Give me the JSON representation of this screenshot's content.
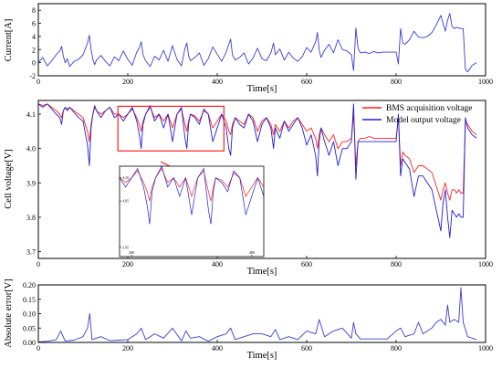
{
  "chart_data": [
    {
      "type": "line",
      "title": "",
      "xlabel": "Time[s]",
      "ylabel": "Current[A]",
      "xlim": [
        0,
        1000
      ],
      "ylim": [
        -2,
        9
      ],
      "xticks": [
        0,
        200,
        400,
        600,
        800,
        1000
      ],
      "yticks": [
        -2,
        0,
        2,
        4,
        6,
        8
      ],
      "grid": false,
      "series": [
        {
          "color": "#3b3bd6",
          "x": [
            0,
            10,
            20,
            30,
            40,
            48,
            52,
            56,
            60,
            65,
            70,
            80,
            90,
            100,
            110,
            114,
            118,
            122,
            126,
            130,
            140,
            150,
            160,
            170,
            180,
            190,
            200,
            210,
            220,
            226,
            230,
            234,
            240,
            250,
            260,
            270,
            280,
            290,
            300,
            310,
            320,
            328,
            332,
            336,
            340,
            350,
            360,
            370,
            380,
            390,
            400,
            410,
            420,
            426,
            430,
            434,
            440,
            450,
            460,
            470,
            480,
            490,
            500,
            510,
            520,
            526,
            530,
            540,
            550,
            560,
            570,
            580,
            590,
            600,
            610,
            620,
            624,
            628,
            632,
            640,
            650,
            660,
            670,
            680,
            690,
            700,
            705,
            710,
            715,
            720,
            730,
            740,
            750,
            760,
            770,
            780,
            790,
            800,
            805,
            810,
            815,
            820,
            830,
            840,
            850,
            860,
            870,
            880,
            890,
            900,
            905,
            910,
            915,
            920,
            925,
            930,
            935,
            940,
            945,
            950,
            955,
            960,
            970,
            980
          ],
          "y": [
            0,
            0.8,
            -0.5,
            0.3,
            1.2,
            1.8,
            2.5,
            1,
            0,
            0.6,
            -0.6,
            0.2,
            0.5,
            1.2,
            3,
            4.2,
            2,
            0.5,
            -0.3,
            0.4,
            1.1,
            0.2,
            -0.5,
            0.9,
            0.3,
            1.8,
            0.5,
            -0.4,
            1.6,
            2.3,
            3.2,
            1.2,
            0.3,
            -0.6,
            1,
            0.4,
            1.9,
            0.2,
            2.6,
            0.5,
            -0.5,
            2.2,
            3,
            1.1,
            0.3,
            0.8,
            1.5,
            -0.4,
            0.6,
            2.4,
            1.3,
            0.2,
            1.6,
            2.8,
            3.6,
            1.2,
            0.4,
            0.8,
            1.5,
            -0.2,
            0.7,
            2.2,
            0.6,
            0.3,
            1.5,
            3,
            1.2,
            2.1,
            0.4,
            1.6,
            0.7,
            0.2,
            0.9,
            2.3,
            1.6,
            3.2,
            4.6,
            2,
            0.8,
            1.9,
            2.8,
            1.5,
            3.5,
            2,
            1.8,
            1.2,
            -1.2,
            5.3,
            2.2,
            1.5,
            1.6,
            1.4,
            1.7,
            1.5,
            1.6,
            1.6,
            1.6,
            1.6,
            -0.2,
            5.2,
            3,
            2.8,
            3.5,
            4.8,
            3.9,
            3.8,
            4,
            4.6,
            5.8,
            7.2,
            6,
            4.8,
            6.5,
            7.5,
            5.5,
            5.2,
            5.4,
            5.3,
            5.2,
            5.2,
            -1,
            -1.4,
            -0.4,
            0
          ]
        }
      ]
    },
    {
      "type": "line",
      "title": "",
      "xlabel": "Time[s]",
      "ylabel": "Cell voltage[V]",
      "xlim": [
        0,
        1000
      ],
      "ylim": [
        3.68,
        4.14
      ],
      "xticks": [
        0,
        200,
        400,
        600,
        800,
        1000
      ],
      "yticks": [
        3.7,
        3.8,
        3.9,
        4.0,
        4.1
      ],
      "grid": false,
      "legend": "top-right",
      "highlight_box": {
        "x": [
          178,
          415
        ],
        "y": [
          3.993,
          4.123
        ]
      },
      "inset": {
        "xticks": [
          200,
          400
        ],
        "xlim": [
          180,
          420
        ],
        "yticks": [
          3.95,
          4.05,
          4.1
        ],
        "ylim": [
          3.93,
          4.125
        ]
      },
      "series": [
        {
          "name": "BMS acquisition voltage",
          "color": "#ff2020",
          "x": [
            0,
            10,
            20,
            30,
            40,
            48,
            52,
            56,
            60,
            65,
            70,
            80,
            90,
            100,
            110,
            114,
            118,
            122,
            126,
            130,
            140,
            150,
            160,
            170,
            180,
            190,
            200,
            210,
            220,
            226,
            230,
            234,
            240,
            250,
            260,
            270,
            280,
            290,
            300,
            310,
            320,
            328,
            332,
            336,
            340,
            350,
            360,
            370,
            380,
            390,
            400,
            410,
            420,
            426,
            430,
            434,
            440,
            450,
            460,
            470,
            480,
            490,
            500,
            510,
            520,
            526,
            530,
            540,
            550,
            560,
            570,
            580,
            590,
            600,
            610,
            620,
            624,
            628,
            632,
            640,
            650,
            660,
            670,
            680,
            690,
            700,
            705,
            710,
            715,
            720,
            730,
            740,
            750,
            760,
            770,
            780,
            790,
            800,
            805,
            810,
            815,
            820,
            830,
            840,
            850,
            860,
            870,
            880,
            890,
            900,
            905,
            910,
            915,
            920,
            925,
            930,
            935,
            940,
            945,
            950,
            955,
            960,
            970,
            980
          ],
          "y": [
            4.13,
            4.125,
            4.13,
            4.12,
            4.11,
            4.1,
            4.09,
            4.11,
            4.12,
            4.115,
            4.12,
            4.11,
            4.1,
            4.09,
            4.05,
            4.02,
            4.07,
            4.1,
            4.12,
            4.11,
            4.1,
            4.11,
            4.12,
            4.1,
            4.1,
            4.09,
            4.1,
            4.115,
            4.09,
            4.07,
            4.05,
            4.08,
            4.1,
            4.12,
            4.09,
            4.1,
            4.08,
            4.1,
            4.06,
            4.1,
            4.115,
            4.07,
            4.05,
            4.08,
            4.1,
            4.095,
            4.08,
            4.11,
            4.1,
            4.06,
            4.08,
            4.1,
            4.08,
            4.05,
            4.04,
            4.07,
            4.09,
            4.08,
            4.07,
            4.1,
            4.09,
            4.05,
            4.08,
            4.09,
            4.07,
            4.04,
            4.07,
            4.05,
            4.08,
            4.06,
            4.08,
            4.09,
            4.07,
            4.05,
            4.06,
            4.03,
            4,
            4.04,
            4.06,
            4.04,
            4.02,
            4.04,
            4,
            4.02,
            4.02,
            4.03,
            4.1,
            3.95,
            4.02,
            4.03,
            4.03,
            4.035,
            4.03,
            4.03,
            4.03,
            4.03,
            4.03,
            4.03,
            4.09,
            3.95,
            3.99,
            3.98,
            3.97,
            3.93,
            3.95,
            3.95,
            3.94,
            3.93,
            3.89,
            3.85,
            3.88,
            3.9,
            3.87,
            3.85,
            3.88,
            3.88,
            3.87,
            3.88,
            3.87,
            3.87,
            4.08,
            4.07,
            4.05,
            4.04
          ]
        },
        {
          "name": "Model output voltage",
          "color": "#1f1fd8",
          "x": [
            0,
            10,
            20,
            30,
            40,
            48,
            52,
            56,
            60,
            65,
            70,
            80,
            90,
            100,
            110,
            114,
            118,
            122,
            126,
            130,
            140,
            150,
            160,
            170,
            180,
            190,
            200,
            210,
            220,
            226,
            230,
            234,
            240,
            250,
            260,
            270,
            280,
            290,
            300,
            310,
            320,
            328,
            332,
            336,
            340,
            350,
            360,
            370,
            380,
            390,
            400,
            410,
            420,
            426,
            430,
            434,
            440,
            450,
            460,
            470,
            480,
            490,
            500,
            510,
            520,
            526,
            530,
            540,
            550,
            560,
            570,
            580,
            590,
            600,
            610,
            620,
            624,
            628,
            632,
            640,
            650,
            660,
            670,
            680,
            690,
            700,
            705,
            710,
            715,
            720,
            730,
            740,
            750,
            760,
            770,
            780,
            790,
            800,
            805,
            810,
            815,
            820,
            830,
            840,
            850,
            860,
            870,
            880,
            890,
            900,
            905,
            910,
            915,
            920,
            925,
            930,
            935,
            940,
            945,
            950,
            955,
            960,
            970,
            980
          ],
          "y": [
            4.13,
            4.12,
            4.13,
            4.115,
            4.1,
            4.09,
            4.07,
            4.11,
            4.12,
            4.11,
            4.12,
            4.105,
            4.09,
            4.08,
            4.01,
            3.95,
            4.06,
            4.1,
            4.125,
            4.11,
            4.09,
            4.11,
            4.12,
            4.09,
            4.1,
            4.08,
            4.1,
            4.12,
            4.08,
            4.04,
            4,
            4.07,
            4.1,
            4.125,
            4.08,
            4.1,
            4.06,
            4.1,
            4.02,
            4.1,
            4.12,
            4.03,
            4,
            4.07,
            4.1,
            4.09,
            4.07,
            4.115,
            4.1,
            4.02,
            4.06,
            4.1,
            4.06,
            4,
            3.98,
            4.06,
            4.09,
            4.07,
            4.06,
            4.1,
            4.08,
            4.02,
            4.07,
            4.09,
            4.06,
            4,
            4.06,
            4.03,
            4.08,
            4.05,
            4.07,
            4.09,
            4.06,
            4.01,
            4.04,
            3.98,
            3.92,
            4.02,
            4.06,
            4.02,
            3.98,
            4.02,
            3.95,
            4,
            4,
            4.02,
            4.13,
            3.91,
            4.02,
            4.02,
            4.02,
            4.02,
            4.02,
            4.02,
            4.02,
            4.02,
            4.02,
            4.02,
            4.1,
            3.92,
            3.97,
            3.96,
            3.94,
            3.86,
            3.92,
            3.92,
            3.9,
            3.88,
            3.82,
            3.76,
            3.84,
            3.88,
            3.8,
            3.74,
            3.82,
            3.81,
            3.8,
            3.81,
            3.8,
            3.8,
            4.09,
            4.06,
            4.04,
            4.03
          ]
        }
      ]
    },
    {
      "type": "line",
      "title": "",
      "xlabel": "Time[s]",
      "ylabel": "Absolute error[V]",
      "xlim": [
        0,
        1000
      ],
      "ylim": [
        0,
        0.2
      ],
      "xticks": [
        0,
        200,
        400,
        600,
        800,
        1000
      ],
      "yticks": [
        0.0,
        0.05,
        0.1,
        0.15,
        0.2
      ],
      "grid": false,
      "series": [
        {
          "color": "#3b3bd6",
          "x": [
            0,
            20,
            40,
            50,
            60,
            80,
            100,
            110,
            115,
            120,
            140,
            160,
            180,
            200,
            220,
            230,
            240,
            260,
            280,
            300,
            320,
            330,
            340,
            360,
            380,
            400,
            420,
            430,
            440,
            460,
            480,
            500,
            520,
            530,
            540,
            560,
            580,
            600,
            620,
            628,
            640,
            660,
            680,
            700,
            705,
            710,
            720,
            740,
            760,
            780,
            800,
            810,
            820,
            840,
            850,
            860,
            870,
            880,
            890,
            900,
            910,
            915,
            920,
            930,
            940,
            945,
            950,
            960,
            980
          ],
          "y": [
            0.002,
            0.004,
            0.01,
            0.04,
            0.005,
            0.008,
            0.02,
            0.05,
            0.1,
            0.01,
            0.02,
            0.006,
            0.008,
            0.01,
            0.03,
            0.05,
            0.01,
            0.03,
            0.015,
            0.05,
            0.005,
            0.04,
            0.015,
            0.02,
            0.004,
            0.02,
            0.03,
            0.05,
            0.01,
            0.02,
            0.03,
            0.03,
            0.02,
            0.045,
            0.01,
            0.02,
            0.01,
            0.04,
            0.03,
            0.08,
            0.02,
            0.04,
            0.05,
            0.015,
            0.07,
            0.03,
            0.012,
            0.012,
            0.012,
            0.012,
            0.04,
            0.05,
            0.02,
            0.03,
            0.07,
            0.03,
            0.04,
            0.05,
            0.07,
            0.08,
            0.06,
            0.13,
            0.07,
            0.08,
            0.07,
            0.19,
            0.07,
            0.02,
            0.01
          ]
        }
      ]
    }
  ]
}
